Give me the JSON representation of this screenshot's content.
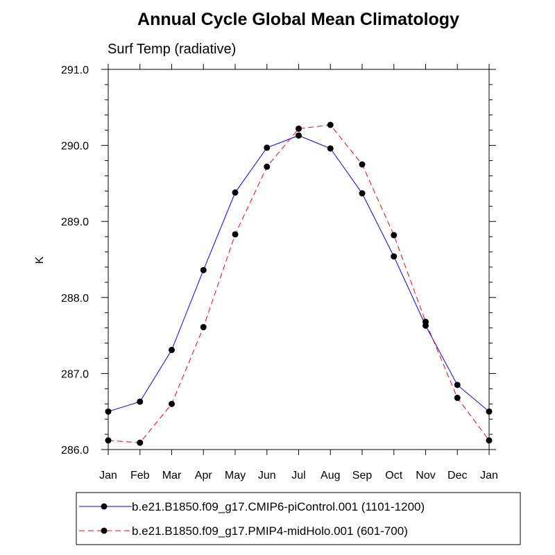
{
  "chart_data": {
    "type": "line",
    "title": "Annual Cycle Global Mean Climatology",
    "subtitle": "Surf Temp (radiative)",
    "ylabel": "K",
    "xlabel": "",
    "categories": [
      "Jan",
      "Feb",
      "Mar",
      "Apr",
      "May",
      "Jun",
      "Jul",
      "Aug",
      "Sep",
      "Oct",
      "Nov",
      "Dec",
      "Jan"
    ],
    "ylim": [
      286.0,
      291.0
    ],
    "yticks": [
      286.0,
      287.0,
      288.0,
      289.0,
      290.0,
      291.0
    ],
    "ytick_labels": [
      "286.0",
      "287.0",
      "288.0",
      "289.0",
      "290.0",
      "291.0"
    ],
    "grid": false,
    "legend_position": "bottom",
    "series": [
      {
        "name": "b.e21.B1850.f09_g17.CMIP6-piControl.001 (1101-1200)",
        "color": "#0000ff",
        "line_style": "solid",
        "marker": "filled-circle",
        "values": [
          286.5,
          286.63,
          287.31,
          288.36,
          289.38,
          289.97,
          290.13,
          289.96,
          289.37,
          288.54,
          287.63,
          286.85,
          286.5
        ]
      },
      {
        "name": "b.e21.B1850.f09_g17.PMIP4-midHolo.001 (601-700)",
        "color": "#ff0000",
        "line_style": "dashed",
        "marker": "filled-circle",
        "values": [
          286.12,
          286.09,
          286.6,
          287.61,
          288.83,
          289.72,
          290.22,
          290.27,
          289.75,
          288.82,
          287.68,
          286.68,
          286.12
        ]
      }
    ]
  }
}
